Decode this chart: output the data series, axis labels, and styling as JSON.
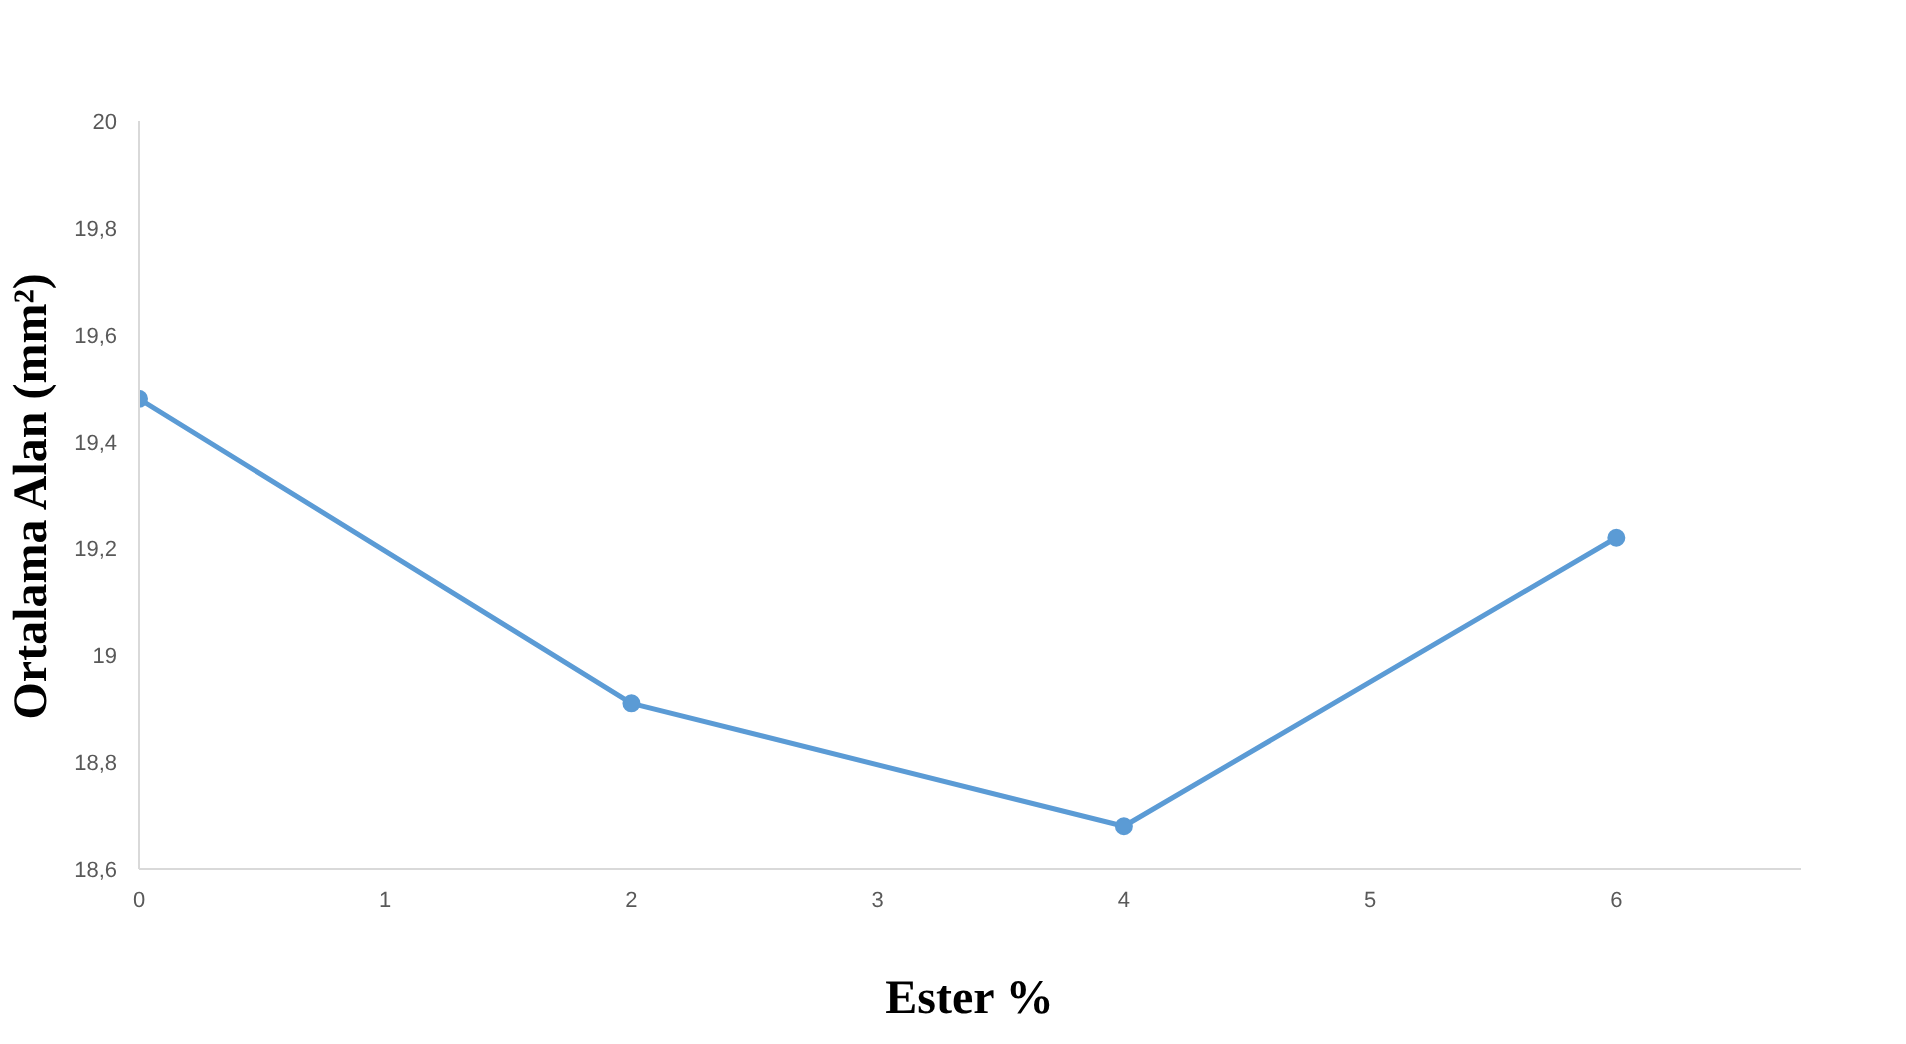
{
  "chart_data": {
    "type": "line",
    "xlabel": "Ester %",
    "ylabel": "Ortalama Alan (mm²)",
    "x": [
      0,
      2,
      4,
      6
    ],
    "series": [
      {
        "color": "#5b9bd5",
        "values": [
          19.48,
          18.91,
          18.68,
          19.22
        ]
      }
    ],
    "xlim": [
      0,
      6.75
    ],
    "xticks": [
      0,
      1,
      2,
      3,
      4,
      5,
      6
    ],
    "ylim": [
      18.6,
      20
    ],
    "yticks": [
      {
        "value": 18.6,
        "label": "18,6"
      },
      {
        "value": 18.8,
        "label": "18,8"
      },
      {
        "value": 19,
        "label": "19"
      },
      {
        "value": 19.2,
        "label": "19,2"
      },
      {
        "value": 19.4,
        "label": "19,4"
      },
      {
        "value": 19.6,
        "label": "19,6"
      },
      {
        "value": 19.8,
        "label": "19,8"
      },
      {
        "value": 20,
        "label": "20"
      }
    ],
    "grid": false,
    "marker": "circle",
    "line_style": "solid"
  }
}
